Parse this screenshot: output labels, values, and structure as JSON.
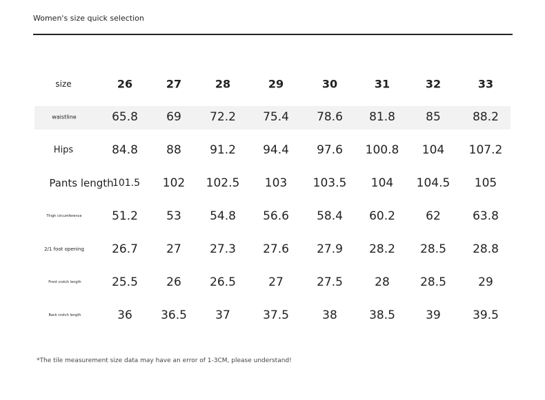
{
  "header": {
    "title": "Women's size quick selection"
  },
  "table": {
    "columns": [
      "size",
      "26",
      "27",
      "28",
      "29",
      "30",
      "31",
      "32",
      "33"
    ],
    "rows": [
      [
        "waistline",
        65.8,
        69,
        72.2,
        75.4,
        78.6,
        81.8,
        85,
        88.2
      ],
      [
        "Hips",
        84.8,
        88,
        91.2,
        94.4,
        97.6,
        100.8,
        104,
        107.2
      ],
      [
        "Pants length",
        101.5,
        102,
        102.5,
        103,
        103.5,
        104,
        104.5,
        105
      ],
      [
        "Thigh circumference",
        51.2,
        53,
        54.8,
        56.6,
        58.4,
        60.2,
        62,
        63.8
      ],
      [
        "2/1 foot opening",
        26.7,
        27,
        27.3,
        27.6,
        27.9,
        28.2,
        28.5,
        28.8
      ],
      [
        "Front crotch length",
        25.5,
        26,
        26.5,
        27,
        27.5,
        28,
        28.5,
        29
      ],
      [
        "Back crotch length",
        36,
        36.5,
        37,
        37.5,
        38,
        38.5,
        39,
        39.5
      ]
    ]
  },
  "footnote": "*The tile measurement size data may have an error of 1-3CM, please understand!"
}
